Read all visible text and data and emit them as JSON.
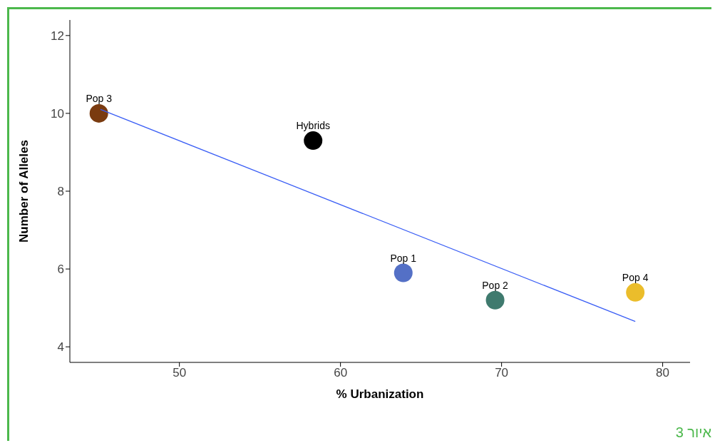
{
  "chart_data": {
    "type": "scatter",
    "xlabel": "% Urbanization",
    "ylabel": "Number of Alleles",
    "xlim": [
      43.2,
      81.7
    ],
    "xticks": [
      50,
      60,
      70,
      80
    ],
    "ylim": [
      3.6,
      12.4
    ],
    "yticks": [
      4,
      6,
      8,
      10,
      12
    ],
    "grid": false,
    "legend": false,
    "series": [
      {
        "marker": "circle",
        "x": [
          45,
          58.3,
          63.9,
          69.6,
          78.3
        ],
        "values": [
          10.0,
          9.3,
          5.9,
          5.2,
          5.4
        ],
        "colors": [
          "#7a3b10",
          "#000000",
          "#5470c6",
          "#3f7a6e",
          "#ebbd2b"
        ]
      },
      {
        "type": "line",
        "x": [
          45.1,
          78.3
        ],
        "values": [
          10.1,
          4.65
        ],
        "color": "#3a5ef5"
      }
    ],
    "annotations": [
      {
        "text": "Pop 3",
        "x": 45,
        "y": 10.0
      },
      {
        "text": "Hybrids",
        "x": 58.3,
        "y": 9.3
      },
      {
        "text": "Pop 1",
        "x": 63.9,
        "y": 5.9
      },
      {
        "text": "Pop 2",
        "x": 69.6,
        "y": 5.2
      },
      {
        "text": "Pop 4",
        "x": 78.3,
        "y": 5.4
      },
      "איור 3"
    ]
  }
}
